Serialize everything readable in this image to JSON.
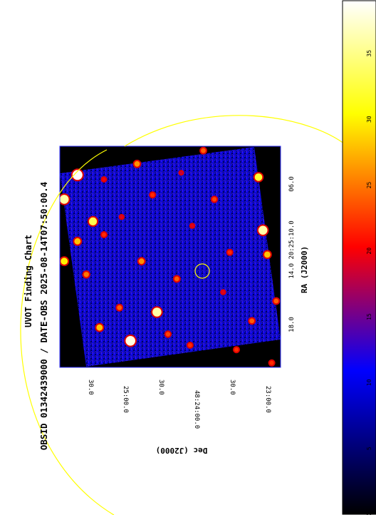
{
  "chart_data": {
    "type": "heatmap",
    "title": "UVOT Finding Chart",
    "subtitle": "OBSID 01342439000 / DATE-OBS 2025-08-14T07:50:00.4",
    "xlabel": "RA (J2000)",
    "ylabel": "Dec (J2000)",
    "ra_ticks": [
      "18.0",
      "14.0  20:25:10.0",
      "06.0"
    ],
    "dec_ticks": [
      "30.0",
      "25:00.0",
      "30.0",
      "48:24:00.0",
      "30.0",
      "23:00.0"
    ],
    "colorbar": {
      "range": [
        0,
        39
      ],
      "ticks": [
        0,
        5,
        10,
        15,
        20,
        25,
        30,
        35
      ],
      "colors": [
        "#000000",
        "#0000ff",
        "#ff0000",
        "#ffff00",
        "#ffffff"
      ]
    },
    "sources": [
      {
        "x": 0.08,
        "y": 0.13,
        "intensity": 39
      },
      {
        "x": 0.02,
        "y": 0.24,
        "intensity": 36
      },
      {
        "x": 0.15,
        "y": 0.34,
        "intensity": 33
      },
      {
        "x": 0.08,
        "y": 0.43,
        "intensity": 28
      },
      {
        "x": 0.02,
        "y": 0.52,
        "intensity": 30
      },
      {
        "x": 0.12,
        "y": 0.58,
        "intensity": 25
      },
      {
        "x": 0.2,
        "y": 0.4,
        "intensity": 22
      },
      {
        "x": 0.18,
        "y": 0.82,
        "intensity": 28
      },
      {
        "x": 0.27,
        "y": 0.73,
        "intensity": 24
      },
      {
        "x": 0.32,
        "y": 0.88,
        "intensity": 38
      },
      {
        "x": 0.35,
        "y": 0.08,
        "intensity": 26
      },
      {
        "x": 0.42,
        "y": 0.22,
        "intensity": 22
      },
      {
        "x": 0.44,
        "y": 0.75,
        "intensity": 36
      },
      {
        "x": 0.37,
        "y": 0.52,
        "intensity": 26
      },
      {
        "x": 0.49,
        "y": 0.85,
        "intensity": 23
      },
      {
        "x": 0.53,
        "y": 0.6,
        "intensity": 24
      },
      {
        "x": 0.59,
        "y": 0.9,
        "intensity": 22
      },
      {
        "x": 0.65,
        "y": 0.02,
        "intensity": 24
      },
      {
        "x": 0.7,
        "y": 0.24,
        "intensity": 23
      },
      {
        "x": 0.77,
        "y": 0.48,
        "intensity": 22
      },
      {
        "x": 0.8,
        "y": 0.92,
        "intensity": 22
      },
      {
        "x": 0.87,
        "y": 0.79,
        "intensity": 24
      },
      {
        "x": 0.9,
        "y": 0.14,
        "intensity": 32
      },
      {
        "x": 0.92,
        "y": 0.38,
        "intensity": 36
      },
      {
        "x": 0.94,
        "y": 0.49,
        "intensity": 28
      },
      {
        "x": 0.96,
        "y": 0.98,
        "intensity": 22
      },
      {
        "x": 0.98,
        "y": 0.7,
        "intensity": 24
      },
      {
        "x": 0.2,
        "y": 0.15,
        "intensity": 20
      },
      {
        "x": 0.28,
        "y": 0.32,
        "intensity": 19
      },
      {
        "x": 0.6,
        "y": 0.36,
        "intensity": 19
      },
      {
        "x": 0.74,
        "y": 0.66,
        "intensity": 19
      },
      {
        "x": 0.55,
        "y": 0.12,
        "intensity": 18
      }
    ],
    "grid": false
  }
}
